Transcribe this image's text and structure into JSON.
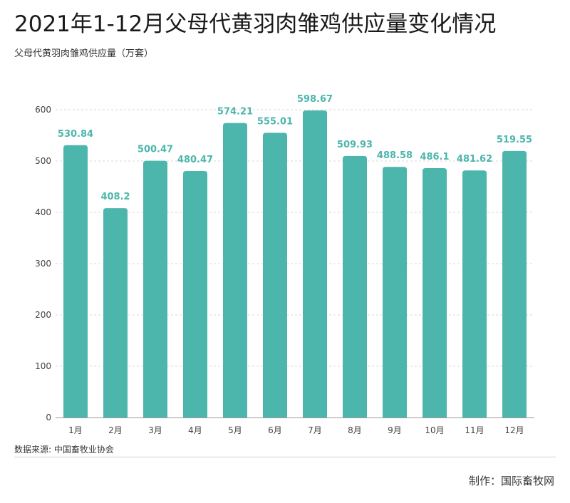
{
  "title": "2021年1-12月父母代黄羽肉雏鸡供应量变化情况",
  "subtitle": "父母代黄羽肉雏鸡供应量（万套）",
  "source": "数据来源: 中国畜牧业协会",
  "credit": "制作：国际畜牧网",
  "colors": {
    "bar": "#4db6ac",
    "value_label": "#4db6ac",
    "grid": "#d9d9d9",
    "axis": "#999999"
  },
  "chart_data": {
    "type": "bar",
    "title": "2021年1-12月父母代黄羽肉雏鸡供应量变化情况",
    "ylabel": "父母代黄羽肉雏鸡供应量（万套）",
    "categories": [
      "1月",
      "2月",
      "3月",
      "4月",
      "5月",
      "6月",
      "7月",
      "8月",
      "9月",
      "10月",
      "11月",
      "12月"
    ],
    "values": [
      530.84,
      408.2,
      500.47,
      480.47,
      574.21,
      555.01,
      598.67,
      509.93,
      488.58,
      486.1,
      481.62,
      519.55
    ],
    "value_labels": [
      "530.84",
      "408.2",
      "500.47",
      "480.47",
      "574.21",
      "555.01",
      "598.67",
      "509.93",
      "488.58",
      "486.1",
      "481.62",
      "519.55"
    ],
    "yticks": [
      0,
      100,
      200,
      300,
      400,
      500,
      600
    ],
    "ylim": [
      0,
      600
    ],
    "grid": true,
    "legend": "none"
  }
}
